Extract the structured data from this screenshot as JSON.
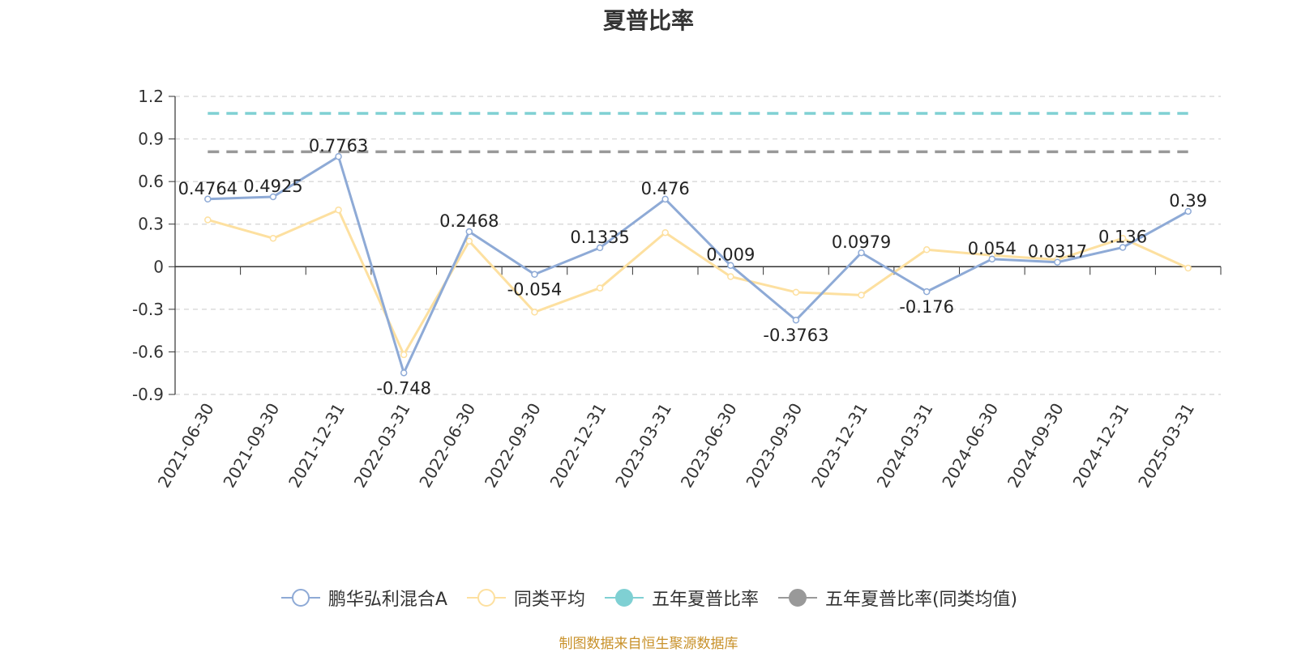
{
  "chart_data": {
    "type": "line",
    "title": "夏普比率",
    "x": [
      "2021-06-30",
      "2021-09-30",
      "2021-12-31",
      "2022-03-31",
      "2022-06-30",
      "2022-09-30",
      "2022-12-31",
      "2023-03-31",
      "2023-06-30",
      "2023-09-30",
      "2023-12-31",
      "2024-03-31",
      "2024-06-30",
      "2024-09-30",
      "2024-12-31",
      "2025-03-31"
    ],
    "ylim": [
      -0.9,
      1.2
    ],
    "yticks": [
      -0.9,
      -0.6,
      -0.3,
      0,
      0.3,
      0.6,
      0.9,
      1.2
    ],
    "ytick_labels": [
      "-0.9",
      "-0.6",
      "-0.3",
      "0",
      "0.3",
      "0.6",
      "0.9",
      "1.2"
    ],
    "grid": true,
    "legend_position": "bottom",
    "series": [
      {
        "name": "鹏华弘利混合A",
        "color": "#8eaad6",
        "values": [
          0.4764,
          0.4925,
          0.7763,
          -0.748,
          0.2468,
          -0.054,
          0.1335,
          0.476,
          0.009,
          -0.3763,
          0.0979,
          -0.176,
          0.054,
          0.0317,
          0.136,
          0.39
        ],
        "data_labels": [
          "0.4764",
          "0.4925",
          "0.7763",
          "-0.748",
          "0.2468",
          "-0.054",
          "0.1335",
          "0.476",
          "0.009",
          "-0.3763",
          "0.0979",
          "-0.176",
          "0.054",
          "0.0317",
          "0.136",
          "0.39"
        ]
      },
      {
        "name": "同类平均",
        "color": "#fde0a0",
        "values": [
          0.33,
          0.2,
          0.4,
          -0.62,
          0.18,
          -0.32,
          -0.15,
          0.24,
          -0.07,
          -0.18,
          -0.2,
          0.12,
          0.08,
          0.05,
          0.2,
          -0.01
        ]
      }
    ],
    "reference_lines": [
      {
        "name": "五年夏普比率",
        "color": "#7fd0d3",
        "value": 1.08
      },
      {
        "name": "五年夏普比率(同类均值)",
        "color": "#999999",
        "value": 0.81
      }
    ]
  },
  "legend": {
    "items": [
      {
        "name": "鹏华弘利混合A",
        "color": "#8eaad6",
        "marker": "hollow-circle"
      },
      {
        "name": "同类平均",
        "color": "#fde0a0",
        "marker": "hollow-circle"
      },
      {
        "name": "五年夏普比率",
        "color": "#7fd0d3",
        "marker": "filled-circle"
      },
      {
        "name": "五年夏普比率(同类均值)",
        "color": "#999999",
        "marker": "filled-circle"
      }
    ]
  },
  "source_note": "制图数据来自恒生聚源数据库"
}
